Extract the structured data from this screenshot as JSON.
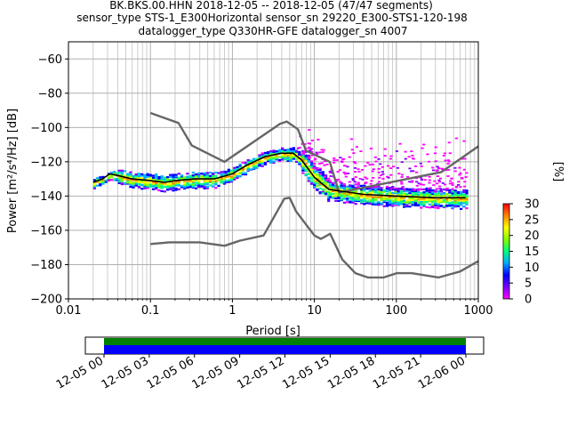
{
  "title_lines": [
    "BK.BKS.00.HHN   2018-12-05 -- 2018-12-05  (47/47 segments)",
    "sensor_type STS-1_E300Horizontal sensor_sn 29220_E300-STS1-120-198",
    "datalogger_type Q330HR-GFE datalogger_sn 4007"
  ],
  "colorbar": {
    "label": "[%]",
    "ticks": [
      0,
      5,
      10,
      15,
      20,
      25,
      30
    ],
    "range": [
      0,
      30
    ]
  },
  "timeline": {
    "tick_labels": [
      "12-05 00",
      "12-05 03",
      "12-05 06",
      "12-05 09",
      "12-05 12",
      "12-05 15",
      "12-05 18",
      "12-05 21",
      "12-06 00"
    ],
    "bar_colors": [
      "#0000ff",
      "#008000"
    ]
  },
  "chart_data": {
    "type": "heatmap",
    "xlabel": "Period [s]",
    "ylabel": "Power [m²/s⁴/Hz] [dB]",
    "x_scale": "log",
    "xlim": [
      0.01,
      1000
    ],
    "ylim": [
      -200,
      -50
    ],
    "x_tick_labels": [
      "0.01",
      "0.1",
      "1",
      "10",
      "100",
      "1000"
    ],
    "x_ticks": [
      0.01,
      0.1,
      1,
      10,
      100,
      1000
    ],
    "y_ticks": [
      -200,
      -180,
      -160,
      -140,
      -120,
      -100,
      -80,
      -60
    ],
    "grid": true,
    "series": [
      {
        "kind": "nlnm",
        "color": "#666666",
        "points": [
          [
            0.1,
            -168
          ],
          [
            0.17,
            -167
          ],
          [
            0.4,
            -167
          ],
          [
            0.8,
            -169
          ],
          [
            1.24,
            -166
          ],
          [
            2.4,
            -163
          ],
          [
            4.3,
            -141.5
          ],
          [
            5,
            -141
          ],
          [
            6,
            -149
          ],
          [
            10,
            -163
          ],
          [
            12,
            -165
          ],
          [
            15.6,
            -162
          ],
          [
            21.9,
            -177
          ],
          [
            31.6,
            -185
          ],
          [
            45,
            -187.5
          ],
          [
            70,
            -187.5
          ],
          [
            101,
            -185
          ],
          [
            154,
            -185
          ],
          [
            328,
            -187.5
          ],
          [
            600,
            -184
          ],
          [
            1000,
            -178
          ]
        ]
      },
      {
        "kind": "nhnm",
        "color": "#666666",
        "points": [
          [
            0.1,
            -91.5
          ],
          [
            0.22,
            -97.4
          ],
          [
            0.32,
            -110.5
          ],
          [
            0.8,
            -120
          ],
          [
            3.8,
            -97.9
          ],
          [
            4.6,
            -96.5
          ],
          [
            6.3,
            -101
          ],
          [
            7.9,
            -113.5
          ],
          [
            15.4,
            -120
          ],
          [
            20,
            -138
          ],
          [
            354.8,
            -126
          ],
          [
            1000,
            -111
          ]
        ]
      },
      {
        "kind": "mode",
        "color": "#000000",
        "points": [
          [
            0.02,
            -132
          ],
          [
            0.026,
            -130
          ],
          [
            0.032,
            -127
          ],
          [
            0.04,
            -128
          ],
          [
            0.06,
            -130
          ],
          [
            0.1,
            -131
          ],
          [
            0.15,
            -132
          ],
          [
            0.2,
            -131
          ],
          [
            0.35,
            -130
          ],
          [
            0.6,
            -130
          ],
          [
            1,
            -127
          ],
          [
            1.5,
            -122
          ],
          [
            2.5,
            -117
          ],
          [
            4,
            -115
          ],
          [
            5.5,
            -115
          ],
          [
            7,
            -119
          ],
          [
            10,
            -129
          ],
          [
            15,
            -136
          ],
          [
            20,
            -137
          ],
          [
            40,
            -139
          ],
          [
            100,
            -140
          ],
          [
            300,
            -141
          ],
          [
            700,
            -141
          ]
        ]
      }
    ],
    "density_bands": [
      {
        "x_range": [
          0.02,
          0.04
        ],
        "y_center": -130,
        "spread": 3
      },
      {
        "x_range": [
          0.04,
          0.8
        ],
        "y_center": -131,
        "spread": 5
      },
      {
        "x_range": [
          0.8,
          1.5
        ],
        "y_center": -126,
        "spread": 4
      },
      {
        "x_range": [
          1.5,
          7
        ],
        "y_center": -117,
        "spread": 4
      },
      {
        "x_range": [
          7,
          15
        ],
        "y_center": -128,
        "spread": 8
      },
      {
        "x_range": [
          15,
          700
        ],
        "y_center": -142,
        "spread": 6
      }
    ],
    "outlier_cloud": {
      "x_range": [
        6,
        700
      ],
      "y_range": [
        -140,
        -95
      ]
    }
  }
}
